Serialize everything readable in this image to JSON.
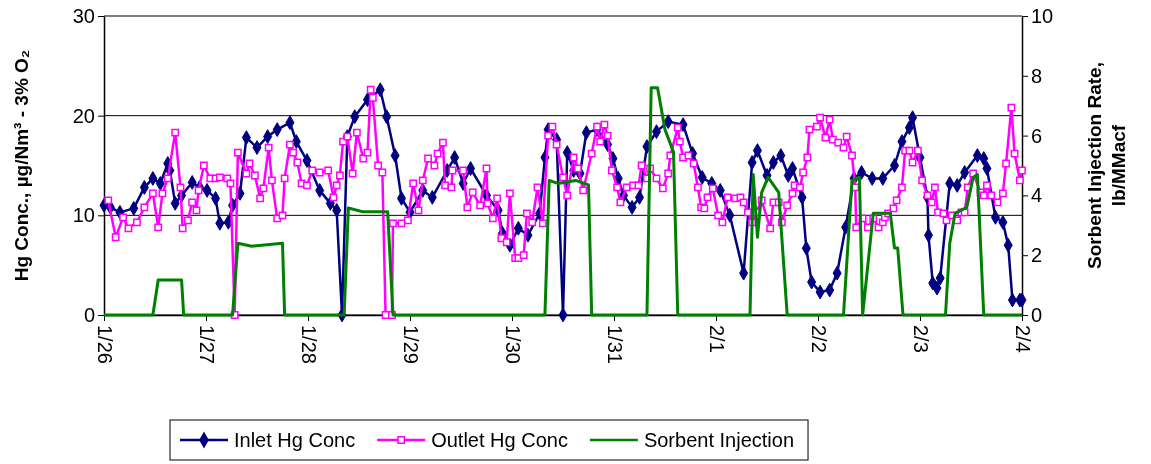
{
  "chart_data": {
    "type": "line",
    "ylabel": "Hg Conc., µg/Nm³ - 3% O₂",
    "y2label": "Sorbent Injection Rate, lb/MMacf",
    "xlim": [
      "--01-26",
      "--02-04"
    ],
    "xticks": [
      {
        "value": "--01-26",
        "label": "1/26"
      },
      {
        "value": "--01-27",
        "label": "1/27"
      },
      {
        "value": "--01-28",
        "label": "1/28"
      },
      {
        "value": "--01-29",
        "label": "1/29"
      },
      {
        "value": "--01-30",
        "label": "1/30"
      },
      {
        "value": "--01-31",
        "label": "1/31"
      },
      {
        "value": "--02-01",
        "label": "2/1"
      },
      {
        "value": "--02-02",
        "label": "2/2"
      },
      {
        "value": "--02-03",
        "label": "2/3"
      },
      {
        "value": "--02-04",
        "label": "2/4"
      }
    ],
    "ylim": [
      0,
      30
    ],
    "yticks": [
      0,
      10,
      20,
      30
    ],
    "y2lim": [
      0,
      10
    ],
    "y2ticks": [
      0,
      2,
      4,
      6,
      8,
      10
    ],
    "grid": "y",
    "legend": "bottom",
    "series": [
      {
        "name": "Inlet Hg Conc",
        "color": "#000080",
        "marker": "diamond",
        "x": [
          "--01-26T00:00",
          "--01-26T01:30",
          "--01-26T03:45",
          "--01-26T07:00",
          "--01-26T09:30",
          "--01-26T11:30",
          "--01-26T13:15",
          "--01-26T15:00",
          "--01-26T15:30",
          "--01-26T16:45",
          "--01-26T18:15",
          "--01-26T20:45",
          "--01-26T22:30",
          "--01-27T00:15",
          "--01-27T02:15",
          "--01-27T03:15",
          "--01-27T05:15",
          "--01-27T06:15",
          "--01-27T08:00",
          "--01-27T09:30",
          "--01-27T12:00",
          "--01-27T14:30",
          "--01-27T16:45",
          "--01-27T19:45",
          "--01-27T21:15",
          "--01-27T23:45",
          "--01-28T02:45",
          "--01-28T05:15",
          "--01-28T06:45",
          "--01-28T08:00",
          "--01-28T09:15",
          "--01-28T11:00",
          "--01-28T14:00",
          "--01-28T17:00",
          "--01-28T18:30",
          "--01-28T20:30",
          "--01-28T22:00",
          "--01-29T00:00",
          "--01-29T03:00",
          "--01-29T05:15",
          "--01-29T08:45",
          "--01-29T10:30",
          "--01-29T12:30",
          "--01-29T14:15",
          "--01-29T18:00",
          "--01-29T20:45",
          "--01-29T21:45",
          "--01-29T23:30",
          "--01-30T01:30",
          "--01-30T03:45",
          "--01-30T06:30",
          "--01-30T07:45",
          "--01-30T08:30",
          "--01-30T10:30",
          "--01-30T12:00",
          "--01-30T13:00",
          "--01-30T14:30",
          "--01-30T16:00",
          "--01-30T17:30",
          "--01-30T20:00",
          "--01-30T22:30",
          "--01-30T23:45",
          "--01-31T01:00",
          "--01-31T02:15",
          "--01-31T04:15",
          "--01-31T06:00",
          "--01-31T07:45",
          "--01-31T10:00",
          "--01-31T12:45",
          "--01-31T16:15",
          "--01-31T18:30",
          "--01-31T20:45",
          "--01-31T23:00",
          "--02-01T01:00",
          "--02-01T03:15",
          "--02-01T06:30",
          "--02-01T08:30",
          "--02-01T09:45",
          "--02-01T12:00",
          "--02-01T13:30",
          "--02-01T15:15",
          "--02-01T17:00",
          "--02-01T18:00",
          "--02-01T20:15",
          "--02-01T21:15",
          "--02-01T22:30",
          "--02-02T00:30",
          "--02-02T02:45",
          "--02-02T04:30",
          "--02-02T06:30",
          "--02-02T08:30",
          "--02-02T10:15",
          "--02-02T12:45",
          "--02-02T15:15",
          "--02-02T18:00",
          "--02-02T19:45",
          "--02-02T21:30",
          "--02-02T22:15",
          "--02-03T00:00",
          "--02-03T01:45",
          "--02-03T02:00",
          "--02-03T03:00",
          "--02-03T04:00",
          "--02-03T04:45",
          "--02-03T07:00",
          "--02-03T08:45",
          "--02-03T10:30",
          "--02-03T13:30",
          "--02-03T15:00",
          "--02-03T15:45",
          "--02-03T17:45",
          "--02-03T19:30",
          "--02-03T20:45",
          "--02-03T21:45",
          "--02-03T23:30",
          "--02-04T00:00"
        ],
        "values": [
          11,
          10.8,
          10.3,
          10.7,
          12.8,
          13.7,
          13.2,
          15.2,
          14.5,
          11.2,
          12,
          13.3,
          12.8,
          12.5,
          11.7,
          9.2,
          9.3,
          11,
          12.2,
          17.8,
          16.8,
          17.9,
          18.6,
          19.3,
          17.4,
          15.5,
          12.5,
          11.2,
          10.5,
          0,
          17.9,
          19.9,
          21.6,
          22.6,
          19.9,
          16,
          11.7,
          10.3,
          12.5,
          11.8,
          14.5,
          15.8,
          13.2,
          14.7,
          12,
          10.5,
          8.2,
          7,
          8.7,
          8,
          10.2,
          15.8,
          18.6,
          17.6,
          0,
          16.3,
          14.5,
          14.2,
          18.3,
          18.6,
          17.1,
          15.7,
          13.7,
          12,
          10.8,
          11.8,
          16.9,
          18.4,
          19.4,
          19.1,
          16.2,
          13.8,
          13.2,
          12.5,
          10,
          4.2,
          15.3,
          16.5,
          14,
          15.3,
          16,
          14,
          14.7,
          11.8,
          6.7,
          3.3,
          2.3,
          2.5,
          4.2,
          8.8,
          13.7,
          14.3,
          13.7,
          13.7,
          15,
          17.4,
          18.8,
          19.8,
          15.8,
          11.8,
          8,
          3.2,
          2.7,
          3.7,
          13.2,
          13,
          14.3,
          16,
          15.7,
          14.7,
          9.8,
          9.3,
          7,
          1.5,
          1.5,
          1.5
        ]
      },
      {
        "name": "Outlet Hg Conc",
        "color": "#ff00ff",
        "marker": "square",
        "x": [
          "--01-26T01:00",
          "--01-26T02:45",
          "--01-26T04:30",
          "--01-26T05:45",
          "--01-26T07:45",
          "--01-26T09:30",
          "--01-26T11:30",
          "--01-26T12:45",
          "--01-26T13:45",
          "--01-26T15:00",
          "--01-26T16:45",
          "--01-26T18:00",
          "--01-26T18:30",
          "--01-26T19:45",
          "--01-26T20:45",
          "--01-26T21:45",
          "--01-26T22:15",
          "--01-26T23:30",
          "--01-27T01:00",
          "--01-27T02:15",
          "--01-27T03:15",
          "--01-27T05:00",
          "--01-27T05:45",
          "--01-27T06:45",
          "--01-27T07:30",
          "--01-27T09:30",
          "--01-27T10:15",
          "--01-27T11:30",
          "--01-27T12:45",
          "--01-27T13:30",
          "--01-27T14:45",
          "--01-27T15:30",
          "--01-27T16:45",
          "--01-27T18:00",
          "--01-27T18:30",
          "--01-27T19:45",
          "--01-27T20:30",
          "--01-27T21:30",
          "--01-27T22:30",
          "--01-27T23:45",
          "--01-28T01:00",
          "--01-28T02:45",
          "--01-28T04:45",
          "--01-28T06:00",
          "--01-28T06:45",
          "--01-28T07:30",
          "--01-28T08:15",
          "--01-28T09:15",
          "--01-28T10:30",
          "--01-28T11:30",
          "--01-28T13:00",
          "--01-28T14:00",
          "--01-28T14:45",
          "--01-28T15:15",
          "--01-28T16:30",
          "--01-28T17:30",
          "--01-28T18:15",
          "--01-28T19:45",
          "--01-28T20:00",
          "--01-28T22:00",
          "--01-28T23:30",
          "--01-29T00:45",
          "--01-29T02:00",
          "--01-29T03:00",
          "--01-29T04:15",
          "--01-29T05:45",
          "--01-29T06:30",
          "--01-29T07:45",
          "--01-29T08:15",
          "--01-29T09:45",
          "--01-29T10:00",
          "--01-29T12:30",
          "--01-29T13:30",
          "--01-29T14:45",
          "--01-29T16:30",
          "--01-29T18:00",
          "--01-29T18:15",
          "--01-29T19:30",
          "--01-29T20:30",
          "--01-29T21:30",
          "--01-29T22:45",
          "--01-29T23:30",
          "--01-30T00:45",
          "--01-30T01:30",
          "--01-30T02:45",
          "--01-30T03:30",
          "--01-30T04:45",
          "--01-30T06:00",
          "--01-30T07:15",
          "--01-30T08:30",
          "--01-30T09:30",
          "--01-30T10:30",
          "--01-30T12:00",
          "--01-30T13:00",
          "--01-30T14:30",
          "--01-30T15:30",
          "--01-30T16:45",
          "--01-30T18:45",
          "--01-30T20:00",
          "--01-30T20:45",
          "--01-30T21:45",
          "--01-30T22:30",
          "--01-30T23:30",
          "--01-31T00:45",
          "--01-31T01:30",
          "--01-31T03:00",
          "--01-31T04:30",
          "--01-31T05:45",
          "--01-31T06:30",
          "--01-31T07:45",
          "--01-31T08:30",
          "--01-31T10:00",
          "--01-31T11:30",
          "--01-31T12:45",
          "--01-31T13:15",
          "--01-31T15:00",
          "--01-31T15:30",
          "--01-31T16:15",
          "--01-31T17:30",
          "--01-31T18:45",
          "--01-31T19:45",
          "--01-31T20:30",
          "--01-31T21:15",
          "--01-31T22:00",
          "--01-31T23:15",
          "--02-01T00:30",
          "--02-01T01:30",
          "--02-01T02:45",
          "--02-01T04:30",
          "--02-01T05:45",
          "--02-01T06:30",
          "--02-01T07:30",
          "--02-01T08:30",
          "--02-01T09:30",
          "--02-01T10:45",
          "--02-01T12:45",
          "--02-01T13:30",
          "--02-01T14:45",
          "--02-01T15:30",
          "--02-01T16:45",
          "--02-01T18:00",
          "--02-01T18:30",
          "--02-01T19:45",
          "--02-01T20:30",
          "--02-01T21:30",
          "--02-01T22:00",
          "--02-01T23:45",
          "--02-02T00:30",
          "--02-02T01:45",
          "--02-02T02:45",
          "--02-02T03:30",
          "--02-02T04:45",
          "--02-02T06:00",
          "--02-02T06:45",
          "--02-02T08:00",
          "--02-02T08:45",
          "--02-02T09:00",
          "--02-02T10:30",
          "--02-02T11:45",
          "--02-02T13:00",
          "--02-02T14:15",
          "--02-02T15:15",
          "--02-02T15:45",
          "--02-02T16:30",
          "--02-02T17:45",
          "--02-02T18:30",
          "--02-02T19:45",
          "--02-02T20:30",
          "--02-02T21:30",
          "--02-02T22:15",
          "--02-02T23:30",
          "--02-03T00:30",
          "--02-03T01:45",
          "--02-03T02:45",
          "--02-03T03:30",
          "--02-03T04:15",
          "--02-03T05:30",
          "--02-03T06:15",
          "--02-03T07:30",
          "--02-03T08:45",
          "--02-03T09:45",
          "--02-03T10:30",
          "--02-03T11:15",
          "--02-03T12:30",
          "--02-03T14:15",
          "--02-03T15:00",
          "--02-03T15:45",
          "--02-03T16:45",
          "--02-03T18:15",
          "--02-03T19:30",
          "--02-03T20:15",
          "--02-03T21:30",
          "--02-03T22:15",
          "--02-03T23:30",
          "--02-04T00:00"
        ],
        "values": [
          11.5,
          7.8,
          9.8,
          8.7,
          9.3,
          10.8,
          12.2,
          8.8,
          12.2,
          13.7,
          18.3,
          12.8,
          8.7,
          9.5,
          11.3,
          10.5,
          12.5,
          15,
          13.7,
          13.7,
          13.8,
          13.7,
          13.2,
          0,
          16.3,
          14.2,
          15.2,
          14,
          11.7,
          12.7,
          16.8,
          13.5,
          9.7,
          10,
          13.7,
          17.1,
          16.3,
          15.3,
          13.2,
          13,
          14.5,
          14.3,
          14.5,
          11.8,
          13,
          14,
          17.4,
          17.9,
          14.2,
          18.3,
          15.7,
          16.3,
          22.6,
          21.8,
          15,
          14.3,
          0,
          0,
          9.2,
          9.2,
          9.5,
          13.2,
          10.5,
          13.5,
          15.7,
          15,
          16.2,
          17.3,
          13,
          12.8,
          14.5,
          14.5,
          10.8,
          12.3,
          11,
          14.7,
          11.2,
          9.7,
          11.7,
          7.7,
          7.3,
          12.2,
          5.7,
          5.7,
          6,
          10.2,
          9.3,
          12.8,
          9.2,
          18,
          18.9,
          17.1,
          13.8,
          12,
          15.8,
          14.7,
          12.5,
          16.2,
          18.9,
          17.4,
          19.1,
          18,
          14.5,
          12.8,
          11.3,
          12.8,
          13,
          13,
          15,
          13.7,
          14.7,
          13.7,
          12.7,
          14.2,
          16,
          18.8,
          17.4,
          15.8,
          16,
          15.2,
          12.8,
          10.8,
          10.7,
          11.8,
          12.7,
          10,
          9.3,
          11.8,
          11.7,
          11.8,
          11.3,
          10.3,
          9.3,
          10.3,
          11.5,
          8.7,
          11.3,
          11.3,
          9.3,
          11,
          12.2,
          13,
          12.8,
          14.3,
          15.8,
          18.6,
          18.9,
          19.8,
          17.8,
          19.6,
          17.6,
          17.3,
          16.8,
          17.9,
          16,
          12.8,
          8.8,
          9.7,
          8.8,
          9.7,
          8.8,
          9.3,
          9.8,
          10.2,
          10.7,
          11.5,
          12.8,
          16.5,
          16.5,
          15.3,
          16.5,
          13.5,
          12,
          11.3,
          12.8,
          10.3,
          10.2,
          9.5,
          10,
          9.5,
          10.3,
          10.3,
          12.8,
          14.2,
          12.3,
          12,
          13,
          12,
          11.3,
          12.2,
          15.2,
          20.8,
          16.2,
          13.5,
          14.5
        ]
      },
      {
        "name": "Sorbent Injection",
        "color": "#008000",
        "marker": "none",
        "axis": "y2",
        "x": [
          "--01-26T00:00",
          "--01-26T11:30",
          "--01-26T12:45",
          "--01-26T18:15",
          "--01-26T18:45",
          "--01-27T06:15",
          "--01-27T07:30",
          "--01-27T10:45",
          "--01-27T18:00",
          "--01-27T18:30",
          "--01-28T08:30",
          "--01-28T09:30",
          "--01-28T13:00",
          "--01-28T18:45",
          "--01-28T20:00",
          "--01-30T07:45",
          "--01-30T08:45",
          "--01-30T10:45",
          "--01-30T15:00",
          "--01-30T18:00",
          "--01-30T18:45",
          "--01-31T07:45",
          "--01-31T08:45",
          "--01-31T10:15",
          "--01-31T12:00",
          "--01-31T14:00",
          "--01-31T15:00",
          "--02-01T08:00",
          "--02-01T08:45",
          "--02-01T09:45",
          "--02-01T10:45",
          "--02-01T12:15",
          "--02-01T14:45",
          "--02-01T16:45",
          "--02-02T06:00",
          "--02-02T08:00",
          "--02-02T09:45",
          "--02-02T10:30",
          "--02-02T13:00",
          "--02-02T17:00",
          "--02-02T18:00",
          "--02-02T18:45",
          "--02-02T20:00",
          "--02-03T06:00",
          "--02-03T07:00",
          "--02-03T08:15",
          "--02-03T11:00",
          "--02-03T12:30",
          "--02-03T13:30",
          "--02-03T15:00",
          "--02-04T00:00"
        ],
        "values": [
          0,
          0,
          1.17,
          1.17,
          0,
          0,
          2.4,
          2.3,
          2.4,
          0,
          0,
          3.58,
          3.45,
          3.45,
          0,
          0,
          4.5,
          4.4,
          4.5,
          4.35,
          0,
          0,
          7.6,
          7.6,
          6.2,
          5.45,
          0,
          0,
          4.7,
          2.6,
          4.1,
          4.6,
          4.1,
          0,
          0,
          4.5,
          4.6,
          0,
          3.4,
          3.4,
          2.24,
          2.24,
          0,
          0,
          2.4,
          3.4,
          3.6,
          4.6,
          4.7,
          0,
          0
        ]
      }
    ]
  }
}
